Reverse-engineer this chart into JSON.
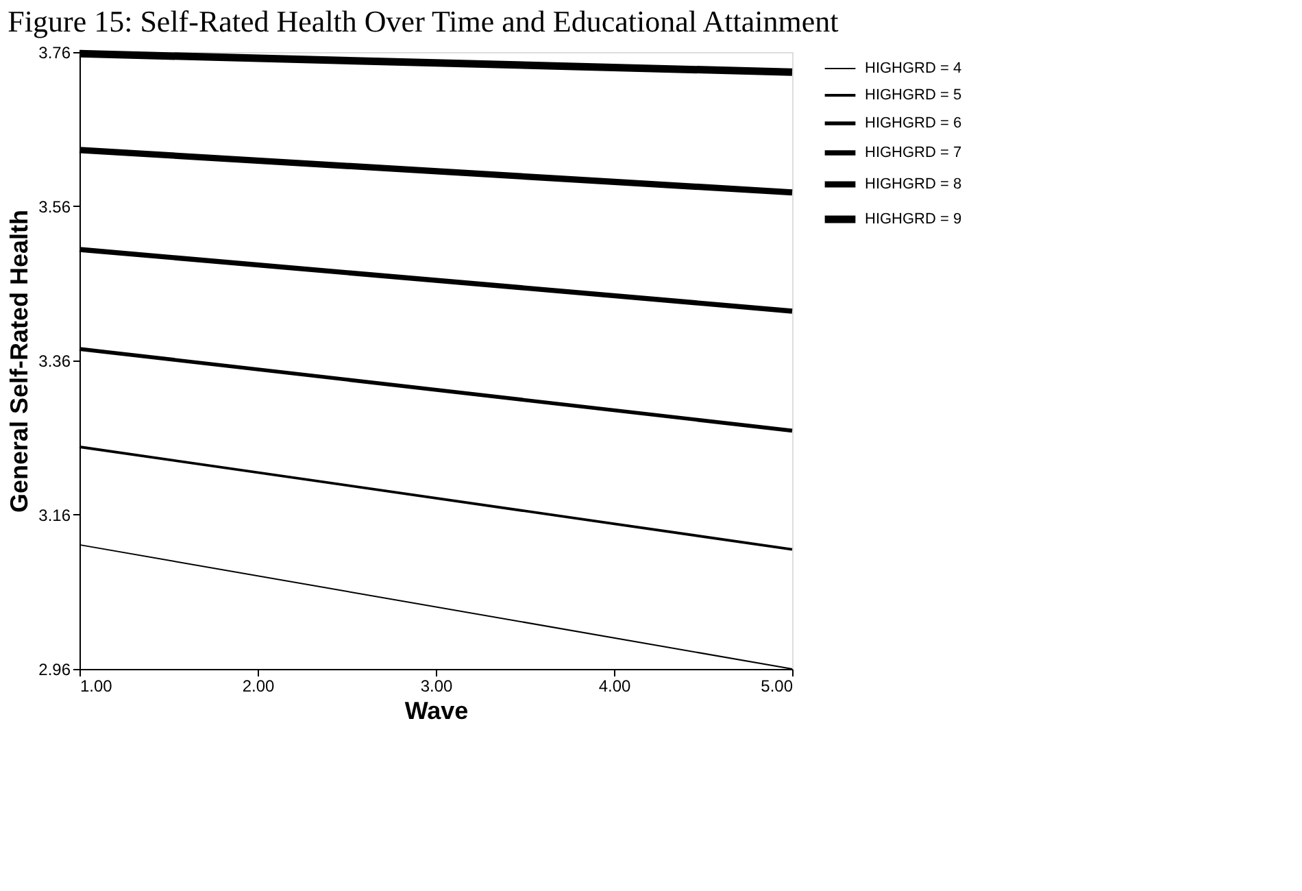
{
  "chart_data": {
    "type": "line",
    "title": "Figure 15: Self-Rated Health Over Time and Educational Attainment",
    "xlabel": "Wave",
    "ylabel": "General Self-Rated Health",
    "x": [
      1,
      5
    ],
    "series": [
      {
        "name": "HIGHGRD = 4",
        "color": "#000000",
        "values": [
          3.121,
          2.96
        ]
      },
      {
        "name": "HIGHGRD = 5",
        "color": "#000000",
        "values": [
          3.248,
          3.115
        ]
      },
      {
        "name": "HIGHGRD = 6",
        "color": "#000000",
        "values": [
          3.375,
          3.269
        ]
      },
      {
        "name": "HIGHGRD = 7",
        "color": "#000000",
        "values": [
          3.504,
          3.424
        ]
      },
      {
        "name": "HIGHGRD = 8",
        "color": "#000000",
        "values": [
          3.633,
          3.578
        ]
      },
      {
        "name": "HIGHGRD = 9",
        "color": "#000000",
        "values": [
          3.758,
          3.734
        ]
      }
    ],
    "xlim": [
      1,
      5
    ],
    "ylim": [
      2.96,
      3.76
    ],
    "xticks": [
      {
        "value": 1,
        "label": "1.00"
      },
      {
        "value": 2,
        "label": "2.00"
      },
      {
        "value": 3,
        "label": "3.00"
      },
      {
        "value": 4,
        "label": "4.00"
      },
      {
        "value": 5,
        "label": "5.00"
      }
    ],
    "yticks": [
      2.96,
      3.16,
      3.36,
      3.56,
      3.76
    ],
    "grid": false,
    "legend": "top right",
    "marker": "none",
    "line_style": "solid"
  }
}
